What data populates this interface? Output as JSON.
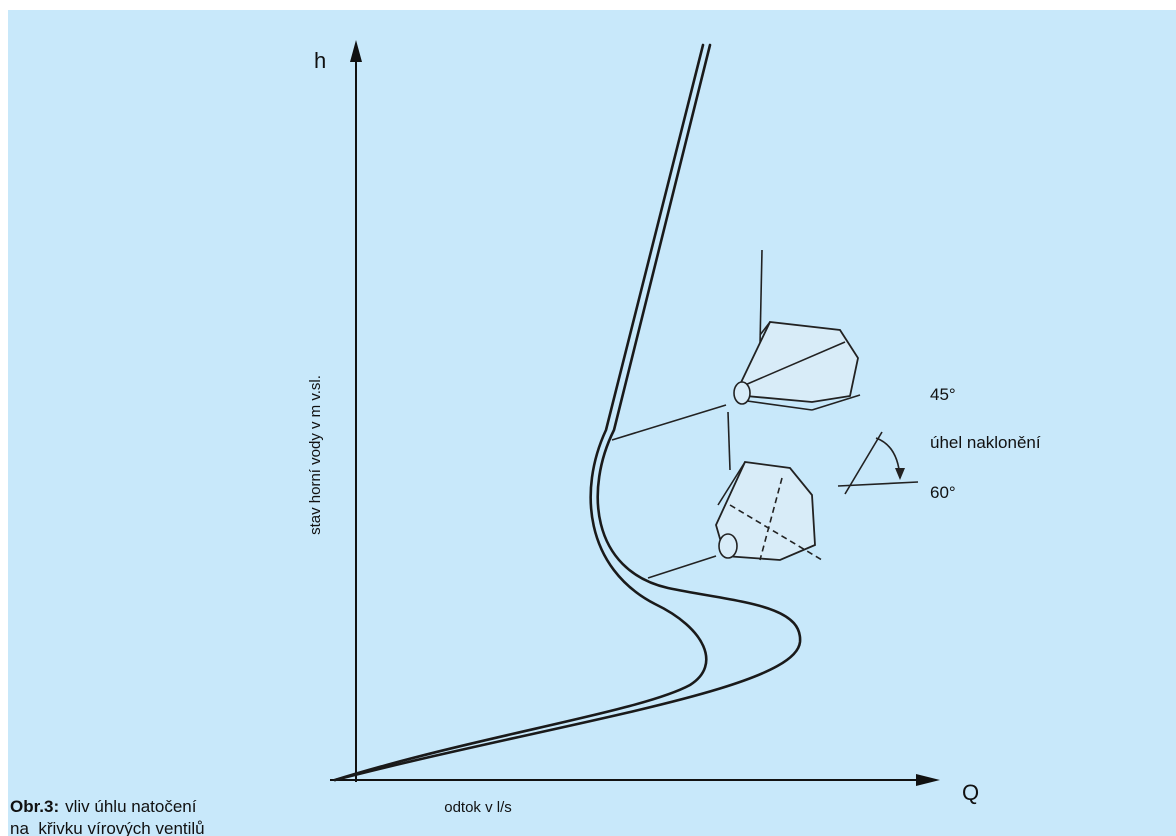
{
  "axes": {
    "y_symbol": "h",
    "x_symbol": "Q",
    "y_label": "stav horní vody v m v.sl.",
    "x_label": "odtok v l/s"
  },
  "angle": {
    "upper": "45°",
    "label": "úhel naklonění",
    "lower": "60°"
  },
  "caption": {
    "number": "Obr.3:",
    "line1": "vliv úhlu natočení",
    "line2": "na  křivku vírových ventilů"
  }
}
